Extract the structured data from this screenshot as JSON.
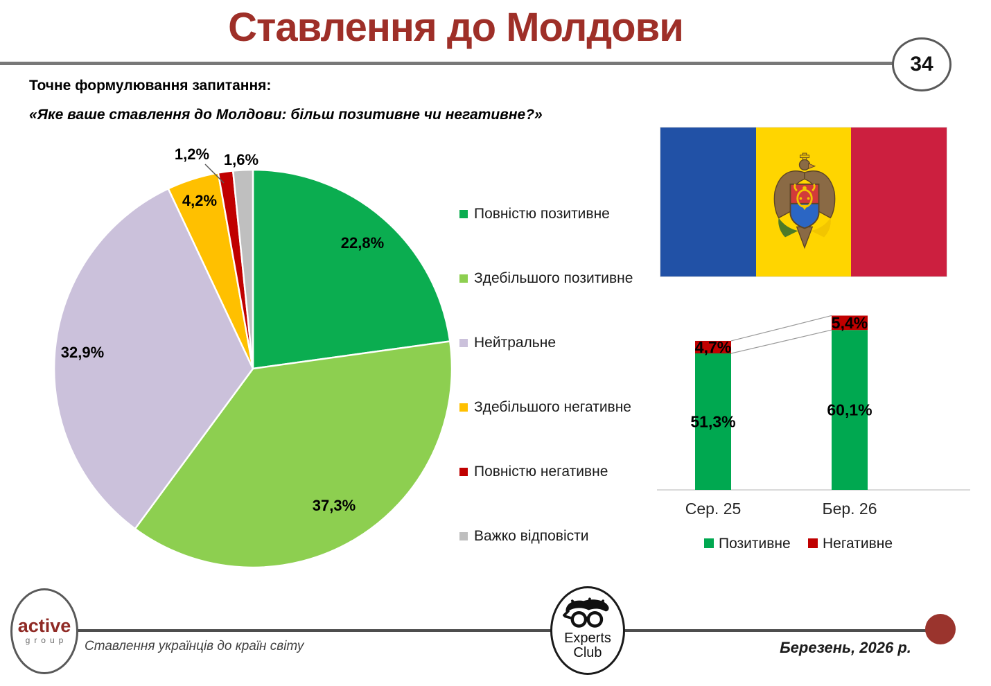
{
  "slide": {
    "title": "Ставлення до Молдови",
    "page_number": "34",
    "question_label": "Точне формулювання запитання:",
    "question_text": "«Яке ваше ставлення до Молдови: більш позитивне чи негативне?»"
  },
  "chart_data": [
    {
      "type": "pie",
      "categories": [
        "Повністю позитивне",
        "Здебільшого позитивне",
        "Нейтральне",
        "Здебільшого негативне",
        "Повністю негативне",
        "Важко відповісти"
      ],
      "values": [
        22.8,
        37.3,
        32.9,
        4.2,
        1.2,
        1.6
      ],
      "labels": [
        "22,8%",
        "37,3%",
        "32,9%",
        "4,2%",
        "1,2%",
        "1,6%"
      ],
      "colors": [
        "#0BAD50",
        "#8DCF50",
        "#CBC1DB",
        "#FFC000",
        "#C00000",
        "#BFBFBF"
      ],
      "start_angle_deg": 0,
      "direction": "clockwise",
      "legend_position": "right"
    },
    {
      "type": "bar",
      "subtype": "stacked-column",
      "categories": [
        "Сер. 25",
        "Бер. 26"
      ],
      "series": [
        {
          "name": "Позитивне",
          "color": "#00A850",
          "values": [
            51.3,
            60.1
          ],
          "labels": [
            "51,3%",
            "60,1%"
          ]
        },
        {
          "name": "Негативне",
          "color": "#C00000",
          "values": [
            4.7,
            5.4
          ],
          "labels": [
            "4,7%",
            "5,4%"
          ]
        }
      ],
      "legend_position": "bottom",
      "connector_lines": true,
      "ylim": [
        0,
        70
      ],
      "grid": false
    }
  ],
  "flag": {
    "country": "Moldova",
    "stripe_colors": [
      "#2151A6",
      "#FFD500",
      "#CC1F3F"
    ]
  },
  "footer": {
    "active_line1": "active",
    "active_line2": "group",
    "tagline": "Ставлення українців до країн світу",
    "experts_line1": "Experts",
    "experts_line2": "Club",
    "date": "Березень, 2026 р."
  }
}
